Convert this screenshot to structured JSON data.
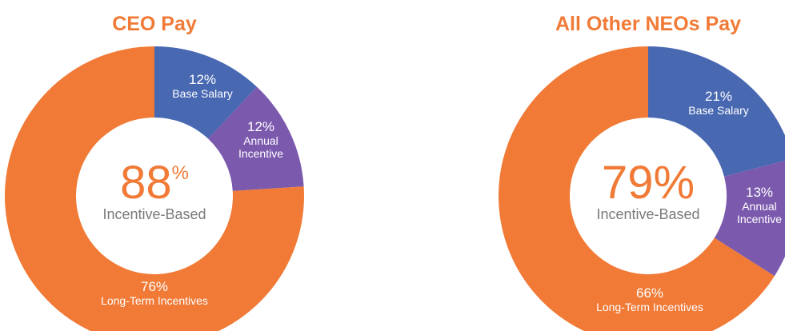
{
  "colors": {
    "orange": "#F07A36",
    "blue": "#4868B2",
    "purple": "#7B5AAE",
    "gray": "#7A7A7A"
  },
  "chart_data": [
    {
      "type": "pie",
      "title": "CEO Pay",
      "center_value": "88",
      "center_unit": "%",
      "center_label": "Incentive-Based",
      "slices": [
        {
          "pct": "12%",
          "lines": [
            "Base Salary"
          ],
          "value": 12,
          "color": "#4868B2"
        },
        {
          "pct": "12%",
          "lines": [
            "Annual",
            "Incentive"
          ],
          "value": 12,
          "color": "#7B5AAE"
        },
        {
          "pct": "76%",
          "lines": [
            "Long-Term Incentives"
          ],
          "value": 76,
          "color": "#F07A36"
        }
      ]
    },
    {
      "type": "pie",
      "title": "All Other NEOs Pay",
      "center_value": "79%",
      "center_unit": "",
      "center_label": "Incentive-Based",
      "slices": [
        {
          "pct": "21%",
          "lines": [
            "Base Salary"
          ],
          "value": 21,
          "color": "#4868B2"
        },
        {
          "pct": "13%",
          "lines": [
            "Annual",
            "Incentive"
          ],
          "value": 13,
          "color": "#7B5AAE"
        },
        {
          "pct": "66%",
          "lines": [
            "Long-Term Incentives"
          ],
          "value": 66,
          "color": "#F07A36"
        }
      ]
    }
  ]
}
